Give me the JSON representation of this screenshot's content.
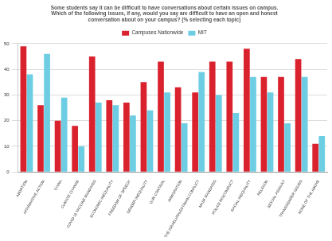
{
  "chart_data": {
    "type": "bar",
    "title": [
      "Some students say it can be difficult to have conversations about certain issues on campus.",
      "Which of the following issues, if any, would you say are difficult to have an open and honest",
      "conversation about on your campus? (% selecting each topic)"
    ],
    "categories": [
      "ABORTION",
      "AFFIRMATIVE ACTION",
      "CHINA",
      "CLIMATE CHANGE",
      "COVID-19 VACCINE MANDATES",
      "ECONOMIC INEQUALITY",
      "FREEDOM OF SPEECH",
      "GENDER INEQUALITY",
      "GUN CONTROL",
      "IMMIGRATION",
      "THE ISRAELI/PALESTINIAN CONFLICT",
      "MASK MANDATES",
      "POLICE MISCONDUCT",
      "RACIAL INEQUALITY",
      "RELIGION",
      "SEXUAL ASSAULT",
      "TRANSGENDER ISSUES",
      "NONE OF THE ABOVE"
    ],
    "series": [
      {
        "name": "Campuses Nationwide",
        "color": "#d9222e",
        "values": [
          49,
          26,
          20,
          18,
          45,
          28,
          27,
          35,
          43,
          33,
          31,
          43,
          43,
          48,
          37,
          37,
          44,
          11
        ]
      },
      {
        "name": "MIT",
        "color": "#6dcde3",
        "values": [
          38,
          46,
          29,
          10,
          27,
          26,
          22,
          24,
          31,
          19,
          39,
          30,
          23,
          37,
          31,
          19,
          37,
          14
        ]
      }
    ],
    "ylim": [
      0,
      50
    ],
    "yticks": [
      0,
      10,
      20,
      30,
      40,
      50
    ],
    "grid": true,
    "legend": "top"
  }
}
